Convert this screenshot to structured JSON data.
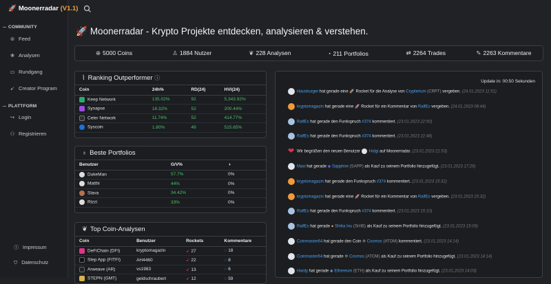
{
  "brand": {
    "name": "Moonerradar",
    "version": "(V1.1)"
  },
  "sidebar": {
    "community_label": "COMMUNITY",
    "community_items": [
      {
        "label": "Feed",
        "icon": "feed-icon"
      },
      {
        "label": "Analysen",
        "icon": "analysis-icon"
      },
      {
        "label": "Rundgang",
        "icon": "video-icon"
      },
      {
        "label": "Creator Program",
        "icon": "rocket-icon"
      }
    ],
    "platform_label": "PLATTFORM",
    "platform_items": [
      {
        "label": "Login",
        "icon": "login-icon"
      },
      {
        "label": "Registrieren",
        "icon": "register-icon"
      }
    ],
    "footer_items": [
      {
        "label": "Impressum",
        "icon": "info-icon"
      },
      {
        "label": "Datenschutz",
        "icon": "shield-icon"
      }
    ]
  },
  "page": {
    "title": "Moonerradar - Krypto Projekte entdecken, analysieren & verstehen."
  },
  "stats": [
    "5000 Coins",
    "1884 Nutzer",
    "228 Analysen",
    "211 Portfolios",
    "2264 Trades",
    "2263 Kommentare"
  ],
  "outperformer": {
    "title": "Ranking Outperformer",
    "headers": [
      "Coin",
      "24h%",
      "RD(24)",
      "HVI(24)"
    ],
    "rows": [
      {
        "coin": "Keep Network",
        "color": "#2aa876",
        "h24": "135.02%",
        "rd": "92",
        "hvi": "5,343.92%"
      },
      {
        "coin": "Synapse",
        "color": "#9b4de0",
        "h24": "18.32%",
        "rd": "52",
        "hvi": "200.44%"
      },
      {
        "coin": "Celer Network",
        "color": "#2d2f34",
        "h24": "11.74%",
        "rd": "52",
        "hvi": "414.77%"
      },
      {
        "coin": "Syscoin",
        "color": "#1e6fd9",
        "h24": "1.80%",
        "rd": "49",
        "hvi": "515.65%"
      }
    ]
  },
  "portfolios": {
    "title": "Beste Portfolios",
    "headers": [
      "Benutzer",
      "G/V%",
      ""
    ],
    "rows": [
      {
        "user": "DukeMan",
        "gv": "57.7%",
        "other": "0%"
      },
      {
        "user": "Matthi",
        "gv": "44%",
        "other": "0%"
      },
      {
        "user": "Slava",
        "gv": "34.42%",
        "other": "0%"
      },
      {
        "user": "Rizzi",
        "gv": "33%",
        "other": "0%"
      }
    ]
  },
  "analysen": {
    "title": "Top Coin-Analysen",
    "headers": [
      "Coin",
      "Benutzer",
      "Rockets",
      "Kommentare"
    ],
    "rows": [
      {
        "coin": "DeFiChain (DFI)",
        "color": "#e0338a",
        "user": "kryptomagazin",
        "rockets": "27",
        "comments": "18"
      },
      {
        "coin": "Step App (FITFI)",
        "color": "#111111",
        "user": "AH4460",
        "rockets": "22",
        "comments": "8"
      },
      {
        "coin": "Arweave (AR)",
        "color": "#222222",
        "user": "vs1983",
        "rockets": "13",
        "comments": "6"
      },
      {
        "coin": "STEPN (GMT)",
        "color": "#d6b44a",
        "user": "geldschraubert",
        "rockets": "12",
        "comments": "59"
      }
    ]
  },
  "feed": {
    "update_text": "Update in: 00:50 Sekunden",
    "items": [
      {
        "user": "Hausburger",
        "text": " hat gerade eine 🚀 Rocket für die Analyse von ",
        "target": "Crypterium",
        "extra": " (CRPT)",
        "tail": " vergeben. ",
        "time": "(24.01.2023 11:51)"
      },
      {
        "user": "kryptomagazin",
        "text": " hat gerade eine 🚀 Rocket für ein Kommentar von ",
        "target": "RalfEs",
        "extra": "",
        "tail": " vergeben. ",
        "time": "(24.01.2023 08:44)"
      },
      {
        "user": "RalfEs",
        "text": " hat gerade den Funkspruch ",
        "target": "#374",
        "extra": "",
        "tail": " kommentiert. ",
        "time": "(23.01.2023 22:50)"
      },
      {
        "user": "RalfEs",
        "text": " hat gerade den Funkspruch ",
        "target": "#374",
        "extra": "",
        "tail": " kommentiert. ",
        "time": "(23.01.2023 22:48)"
      },
      {
        "user": "",
        "text": "Wir begrüßen den neuen Benutzer ",
        "target": "Holgi",
        "extra": "",
        "tail": " auf Moonerradar. ",
        "time": "(23.01.2023 21:53)"
      },
      {
        "user": "Maxi",
        "text": " hat gerade ",
        "target": "Sapphire",
        "extra": " (SAPP)",
        "tail": " als Kauf zu seinem Portfolio hinzugefügt. ",
        "time": "(23.01.2023 17:26)"
      },
      {
        "user": "kryptomagazin",
        "text": " hat gerade den Funkspruch ",
        "target": "#374",
        "extra": "",
        "tail": " kommentiert. ",
        "time": "(23.01.2023 15:32)"
      },
      {
        "user": "kryptomagazin",
        "text": " hat gerade eine 🚀 Rocket für ein Kommentar von ",
        "target": "RalfEs",
        "extra": "",
        "tail": " vergeben. ",
        "time": "(23.01.2023 15:32)"
      },
      {
        "user": "RalfEs",
        "text": " hat gerade den Funkspruch ",
        "target": "#374",
        "extra": "",
        "tail": " kommentiert. ",
        "time": "(23.01.2023 15:10)"
      },
      {
        "user": "RalfEs",
        "text": " hat gerade ",
        "target": "Shiba Inu",
        "extra": " (SHIB)",
        "tail": " als Kauf zu seinem Portfolio hinzugefügt. ",
        "time": "(23.01.2023 15:09)"
      },
      {
        "user": "Coinmaster64",
        "text": " hat gerade den Coin ",
        "target": "Cosmos",
        "extra": " (ATOM)",
        "tail": " kommentiert. ",
        "time": "(23.01.2023 14:14)"
      },
      {
        "user": "Coinmaster64",
        "text": " hat gerade ",
        "target": "Cosmos",
        "extra": " (ATOM)",
        "tail": " als Kauf zu seinem Portfolio hinzugefügt. ",
        "time": "(23.01.2023 14:14)"
      },
      {
        "user": "Hardy",
        "text": " hat gerade ",
        "target": "Ethereum",
        "extra": " (ETH)",
        "tail": " als Kauf zu seinem Portfolio hinzugefügt. ",
        "time": "(23.01.2023 14:03)"
      }
    ]
  }
}
